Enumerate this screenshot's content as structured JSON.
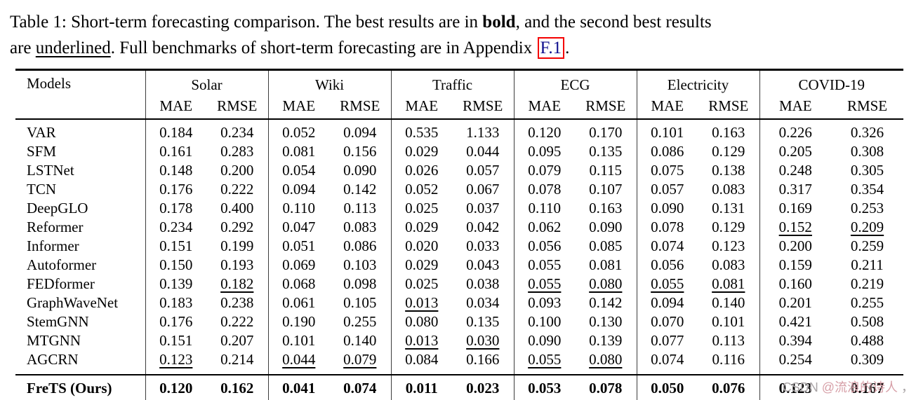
{
  "caption": {
    "line1": {
      "pre": "Table 1: Short-term forecasting comparison. The best results are in ",
      "bold": "bold",
      "post": ", and the second best results"
    },
    "line2": {
      "pre": "are ",
      "underlined": "underlined",
      "mid": ". Full benchmarks of short-term forecasting are in Appendix ",
      "link": "F.1",
      "post": "."
    }
  },
  "table": {
    "corner_header": "Models",
    "groups": [
      "Solar",
      "Wiki",
      "Traffic",
      "ECG",
      "Electricity",
      "COVID-19"
    ],
    "metrics": [
      "MAE",
      "RMSE"
    ],
    "rows": [
      {
        "model": "VAR",
        "final": false,
        "cells": [
          [
            "0.184",
            "n"
          ],
          [
            "0.234",
            "n"
          ],
          [
            "0.052",
            "n"
          ],
          [
            "0.094",
            "n"
          ],
          [
            "0.535",
            "n"
          ],
          [
            "1.133",
            "n"
          ],
          [
            "0.120",
            "n"
          ],
          [
            "0.170",
            "n"
          ],
          [
            "0.101",
            "n"
          ],
          [
            "0.163",
            "n"
          ],
          [
            "0.226",
            "n"
          ],
          [
            "0.326",
            "n"
          ]
        ]
      },
      {
        "model": "SFM",
        "final": false,
        "cells": [
          [
            "0.161",
            "n"
          ],
          [
            "0.283",
            "n"
          ],
          [
            "0.081",
            "n"
          ],
          [
            "0.156",
            "n"
          ],
          [
            "0.029",
            "n"
          ],
          [
            "0.044",
            "n"
          ],
          [
            "0.095",
            "n"
          ],
          [
            "0.135",
            "n"
          ],
          [
            "0.086",
            "n"
          ],
          [
            "0.129",
            "n"
          ],
          [
            "0.205",
            "n"
          ],
          [
            "0.308",
            "n"
          ]
        ]
      },
      {
        "model": "LSTNet",
        "final": false,
        "cells": [
          [
            "0.148",
            "n"
          ],
          [
            "0.200",
            "n"
          ],
          [
            "0.054",
            "n"
          ],
          [
            "0.090",
            "n"
          ],
          [
            "0.026",
            "n"
          ],
          [
            "0.057",
            "n"
          ],
          [
            "0.079",
            "n"
          ],
          [
            "0.115",
            "n"
          ],
          [
            "0.075",
            "n"
          ],
          [
            "0.138",
            "n"
          ],
          [
            "0.248",
            "n"
          ],
          [
            "0.305",
            "n"
          ]
        ]
      },
      {
        "model": "TCN",
        "final": false,
        "cells": [
          [
            "0.176",
            "n"
          ],
          [
            "0.222",
            "n"
          ],
          [
            "0.094",
            "n"
          ],
          [
            "0.142",
            "n"
          ],
          [
            "0.052",
            "n"
          ],
          [
            "0.067",
            "n"
          ],
          [
            "0.078",
            "n"
          ],
          [
            "0.107",
            "n"
          ],
          [
            "0.057",
            "n"
          ],
          [
            "0.083",
            "n"
          ],
          [
            "0.317",
            "n"
          ],
          [
            "0.354",
            "n"
          ]
        ]
      },
      {
        "model": "DeepGLO",
        "final": false,
        "cells": [
          [
            "0.178",
            "n"
          ],
          [
            "0.400",
            "n"
          ],
          [
            "0.110",
            "n"
          ],
          [
            "0.113",
            "n"
          ],
          [
            "0.025",
            "n"
          ],
          [
            "0.037",
            "n"
          ],
          [
            "0.110",
            "n"
          ],
          [
            "0.163",
            "n"
          ],
          [
            "0.090",
            "n"
          ],
          [
            "0.131",
            "n"
          ],
          [
            "0.169",
            "n"
          ],
          [
            "0.253",
            "n"
          ]
        ]
      },
      {
        "model": "Reformer",
        "final": false,
        "cells": [
          [
            "0.234",
            "n"
          ],
          [
            "0.292",
            "n"
          ],
          [
            "0.047",
            "n"
          ],
          [
            "0.083",
            "n"
          ],
          [
            "0.029",
            "n"
          ],
          [
            "0.042",
            "n"
          ],
          [
            "0.062",
            "n"
          ],
          [
            "0.090",
            "n"
          ],
          [
            "0.078",
            "n"
          ],
          [
            "0.129",
            "n"
          ],
          [
            "0.152",
            "u"
          ],
          [
            "0.209",
            "u"
          ]
        ]
      },
      {
        "model": "Informer",
        "final": false,
        "cells": [
          [
            "0.151",
            "n"
          ],
          [
            "0.199",
            "n"
          ],
          [
            "0.051",
            "n"
          ],
          [
            "0.086",
            "n"
          ],
          [
            "0.020",
            "n"
          ],
          [
            "0.033",
            "n"
          ],
          [
            "0.056",
            "n"
          ],
          [
            "0.085",
            "n"
          ],
          [
            "0.074",
            "n"
          ],
          [
            "0.123",
            "n"
          ],
          [
            "0.200",
            "n"
          ],
          [
            "0.259",
            "n"
          ]
        ]
      },
      {
        "model": "Autoformer",
        "final": false,
        "cells": [
          [
            "0.150",
            "n"
          ],
          [
            "0.193",
            "n"
          ],
          [
            "0.069",
            "n"
          ],
          [
            "0.103",
            "n"
          ],
          [
            "0.029",
            "n"
          ],
          [
            "0.043",
            "n"
          ],
          [
            "0.055",
            "n"
          ],
          [
            "0.081",
            "n"
          ],
          [
            "0.056",
            "n"
          ],
          [
            "0.083",
            "n"
          ],
          [
            "0.159",
            "n"
          ],
          [
            "0.211",
            "n"
          ]
        ]
      },
      {
        "model": "FEDformer",
        "final": false,
        "cells": [
          [
            "0.139",
            "n"
          ],
          [
            "0.182",
            "u"
          ],
          [
            "0.068",
            "n"
          ],
          [
            "0.098",
            "n"
          ],
          [
            "0.025",
            "n"
          ],
          [
            "0.038",
            "n"
          ],
          [
            "0.055",
            "u"
          ],
          [
            "0.080",
            "u"
          ],
          [
            "0.055",
            "u"
          ],
          [
            "0.081",
            "u"
          ],
          [
            "0.160",
            "n"
          ],
          [
            "0.219",
            "n"
          ]
        ]
      },
      {
        "model": "GraphWaveNet",
        "final": false,
        "cells": [
          [
            "0.183",
            "n"
          ],
          [
            "0.238",
            "n"
          ],
          [
            "0.061",
            "n"
          ],
          [
            "0.105",
            "n"
          ],
          [
            "0.013",
            "u"
          ],
          [
            "0.034",
            "n"
          ],
          [
            "0.093",
            "n"
          ],
          [
            "0.142",
            "n"
          ],
          [
            "0.094",
            "n"
          ],
          [
            "0.140",
            "n"
          ],
          [
            "0.201",
            "n"
          ],
          [
            "0.255",
            "n"
          ]
        ]
      },
      {
        "model": "StemGNN",
        "final": false,
        "cells": [
          [
            "0.176",
            "n"
          ],
          [
            "0.222",
            "n"
          ],
          [
            "0.190",
            "n"
          ],
          [
            "0.255",
            "n"
          ],
          [
            "0.080",
            "n"
          ],
          [
            "0.135",
            "n"
          ],
          [
            "0.100",
            "n"
          ],
          [
            "0.130",
            "n"
          ],
          [
            "0.070",
            "n"
          ],
          [
            "0.101",
            "n"
          ],
          [
            "0.421",
            "n"
          ],
          [
            "0.508",
            "n"
          ]
        ]
      },
      {
        "model": "MTGNN",
        "final": false,
        "cells": [
          [
            "0.151",
            "n"
          ],
          [
            "0.207",
            "n"
          ],
          [
            "0.101",
            "n"
          ],
          [
            "0.140",
            "n"
          ],
          [
            "0.013",
            "u"
          ],
          [
            "0.030",
            "u"
          ],
          [
            "0.090",
            "n"
          ],
          [
            "0.139",
            "n"
          ],
          [
            "0.077",
            "n"
          ],
          [
            "0.113",
            "n"
          ],
          [
            "0.394",
            "n"
          ],
          [
            "0.488",
            "n"
          ]
        ]
      },
      {
        "model": "AGCRN",
        "final": false,
        "cells": [
          [
            "0.123",
            "u"
          ],
          [
            "0.214",
            "n"
          ],
          [
            "0.044",
            "u"
          ],
          [
            "0.079",
            "u"
          ],
          [
            "0.084",
            "n"
          ],
          [
            "0.166",
            "n"
          ],
          [
            "0.055",
            "u"
          ],
          [
            "0.080",
            "u"
          ],
          [
            "0.074",
            "n"
          ],
          [
            "0.116",
            "n"
          ],
          [
            "0.254",
            "n"
          ],
          [
            "0.309",
            "n"
          ]
        ]
      },
      {
        "model": "FreTS (Ours)",
        "final": true,
        "cells": [
          [
            "0.120",
            "b"
          ],
          [
            "0.162",
            "b"
          ],
          [
            "0.041",
            "b"
          ],
          [
            "0.074",
            "b"
          ],
          [
            "0.011",
            "b"
          ],
          [
            "0.023",
            "b"
          ],
          [
            "0.053",
            "b"
          ],
          [
            "0.078",
            "b"
          ],
          [
            "0.050",
            "b"
          ],
          [
            "0.076",
            "b"
          ],
          [
            "0.123",
            "b"
          ],
          [
            "0.167",
            "b"
          ]
        ]
      }
    ]
  },
  "watermark": {
    "site": "CSDN ",
    "user": "@流浪的诗人",
    "tail": " ，"
  }
}
